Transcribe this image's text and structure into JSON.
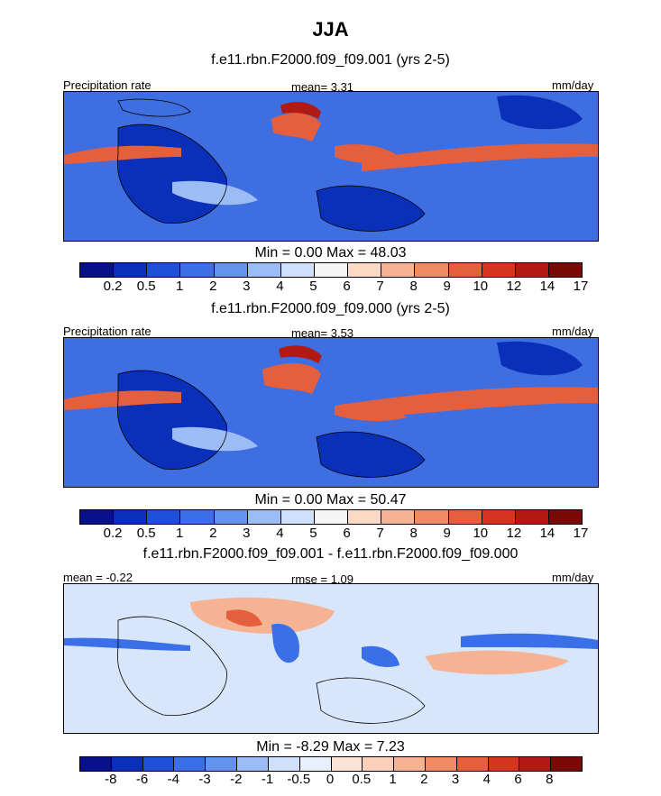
{
  "figure": {
    "title": "JJA"
  },
  "panels": [
    {
      "title": "f.e11.rbn.F2000.f09_f09.001 (yrs 2-5)",
      "left_label": "Precipitation rate",
      "center_label": "mean=   3.31",
      "right_label": "mm/day",
      "minmax": "Min =   0.00 Max =  48.03",
      "kind": "precip"
    },
    {
      "title": "f.e11.rbn.F2000.f09_f09.000 (yrs 2-5)",
      "left_label": "Precipitation rate",
      "center_label": "mean=   3.53",
      "right_label": "mm/day",
      "minmax": "Min =   0.00 Max =  50.47",
      "kind": "precip"
    },
    {
      "title": "f.e11.rbn.F2000.f09_f09.001 - f.e11.rbn.F2000.f09_f09.000",
      "left_label": "mean =  -0.22",
      "center_label": "rmse =   1.09",
      "right_label": "mm/day",
      "minmax": "Min =  -8.29 Max =   7.23",
      "kind": "diff"
    }
  ],
  "colorbars": {
    "precip": {
      "colors": [
        "#08108a",
        "#0a2fb8",
        "#1f4fd6",
        "#3a6fe8",
        "#6393ee",
        "#9bbcf4",
        "#cfe0fa",
        "#f5f5f5",
        "#fbd9c4",
        "#f6b394",
        "#ef8a64",
        "#e65f3c",
        "#d5341f",
        "#b01a12",
        "#7a0a08"
      ],
      "labels": [
        "0.2",
        "0.5",
        "1",
        "2",
        "3",
        "4",
        "5",
        "6",
        "7",
        "8",
        "9",
        "10",
        "12",
        "14",
        "17"
      ]
    },
    "diff": {
      "colors": [
        "#08108a",
        "#0a2fb8",
        "#1f4fd6",
        "#3a6fe8",
        "#6393ee",
        "#9bbcf4",
        "#cfe0fa",
        "#e8f0fb",
        "#fbe3d6",
        "#fbd0bb",
        "#f6b394",
        "#ef8a64",
        "#e65f3c",
        "#d5341f",
        "#b01a12",
        "#7a0a08"
      ],
      "labels": [
        "-8",
        "-6",
        "-4",
        "-3",
        "-2",
        "-1",
        "-0.5",
        "0",
        "0.5",
        "1",
        "2",
        "3",
        "4",
        "6",
        "8"
      ]
    }
  },
  "map_colors": {
    "precip_background": "#3f6ee0",
    "precip_dry": "#0a2fb8",
    "precip_moderate": "#9bbcf4",
    "precip_wet": "#e65f3c",
    "precip_very_wet": "#b01a12",
    "diff_background": "#d7e6fa",
    "diff_positive": "#f6b394",
    "diff_strong_positive": "#e65f3c",
    "diff_negative": "#3a6fe8",
    "coastline": "#000000"
  }
}
